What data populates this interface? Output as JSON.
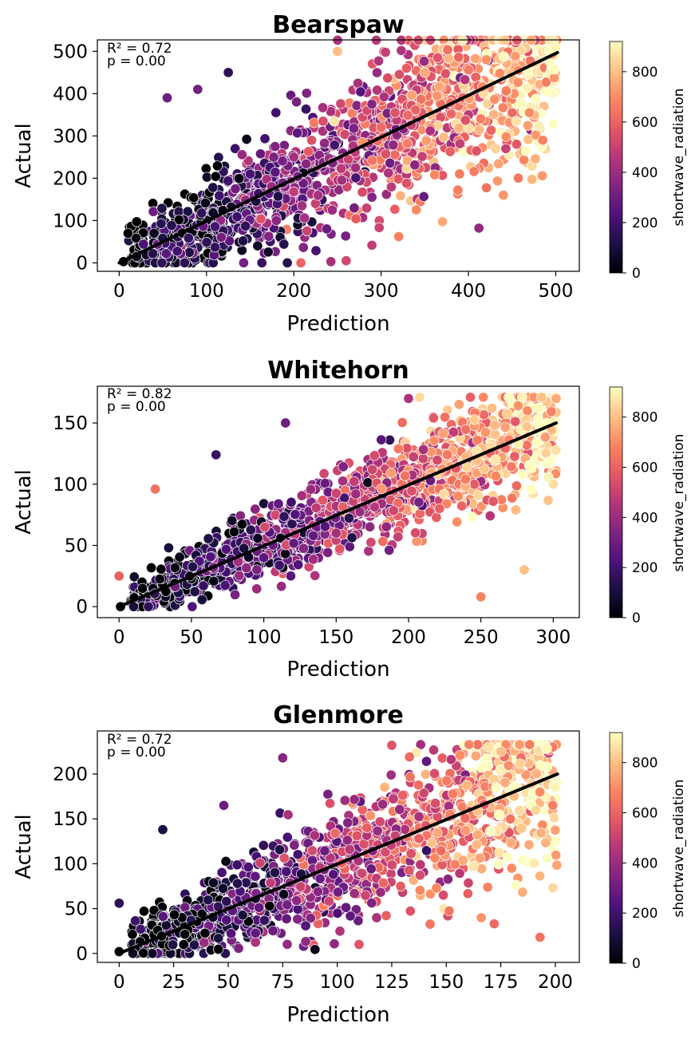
{
  "chart_data": [
    {
      "type": "scatter",
      "title": "Bearspaw",
      "xlabel": "Prediction",
      "ylabel": "Actual",
      "xlim": [
        -25,
        527
      ],
      "ylim": [
        -20,
        527
      ],
      "xticks": [
        0,
        100,
        200,
        300,
        400,
        500
      ],
      "yticks": [
        0,
        100,
        200,
        300,
        400,
        500
      ],
      "annotation": {
        "r2": "R² = 0.72",
        "p": "p = 0.00"
      },
      "regression": {
        "x": [
          0,
          502
        ],
        "y": [
          0,
          497
        ]
      },
      "color_by": "shortwave_radiation",
      "clim": [
        0,
        920
      ],
      "cbar_ticks": [
        0,
        200,
        400,
        600,
        800
      ],
      "cbar_label": "shortwave_radiation",
      "points_sample": [
        {
          "x": 5,
          "y": 3,
          "c": 5
        },
        {
          "x": 20,
          "y": 15,
          "c": 20
        },
        {
          "x": 40,
          "y": 70,
          "c": 50
        },
        {
          "x": 55,
          "y": 390,
          "c": 300
        },
        {
          "x": 90,
          "y": 410,
          "c": 310
        },
        {
          "x": 125,
          "y": 450,
          "c": 150
        },
        {
          "x": 150,
          "y": 210,
          "c": 220
        },
        {
          "x": 200,
          "y": 250,
          "c": 420
        },
        {
          "x": 250,
          "y": 500,
          "c": 800
        },
        {
          "x": 300,
          "y": 320,
          "c": 620
        },
        {
          "x": 350,
          "y": 450,
          "c": 760
        },
        {
          "x": 412,
          "y": 82,
          "c": 380
        },
        {
          "x": 440,
          "y": 160,
          "c": 720
        },
        {
          "x": 455,
          "y": 335,
          "c": 870
        },
        {
          "x": 470,
          "y": 355,
          "c": 700
        },
        {
          "x": 500,
          "y": 510,
          "c": 900
        },
        {
          "x": 260,
          "y": 5,
          "c": 520
        },
        {
          "x": 180,
          "y": 100,
          "c": 360
        }
      ]
    },
    {
      "type": "scatter",
      "title": "Whitehorn",
      "xlabel": "Prediction",
      "ylabel": "Actual",
      "xlim": [
        -15,
        318
      ],
      "ylim": [
        -9,
        180
      ],
      "xticks": [
        0,
        50,
        100,
        150,
        200,
        250,
        300
      ],
      "yticks": [
        0,
        50,
        100,
        150
      ],
      "annotation": {
        "r2": "R² = 0.82",
        "p": "p = 0.00"
      },
      "regression": {
        "x": [
          0,
          302
        ],
        "y": [
          0,
          150
        ]
      },
      "color_by": "shortwave_radiation",
      "clim": [
        0,
        920
      ],
      "cbar_ticks": [
        0,
        200,
        400,
        600,
        800
      ],
      "cbar_label": "shortwave_radiation",
      "points_sample": [
        {
          "x": 1,
          "y": 0,
          "c": 5
        },
        {
          "x": 0,
          "y": 25,
          "c": 600
        },
        {
          "x": 25,
          "y": 96,
          "c": 640
        },
        {
          "x": 67,
          "y": 124,
          "c": 180
        },
        {
          "x": 115,
          "y": 150,
          "c": 300
        },
        {
          "x": 175,
          "y": 112,
          "c": 520
        },
        {
          "x": 200,
          "y": 170,
          "c": 440
        },
        {
          "x": 250,
          "y": 8,
          "c": 680
        },
        {
          "x": 280,
          "y": 30,
          "c": 800
        },
        {
          "x": 300,
          "y": 100,
          "c": 860
        },
        {
          "x": 302,
          "y": 170,
          "c": 760
        },
        {
          "x": 260,
          "y": 120,
          "c": 880
        },
        {
          "x": 150,
          "y": 60,
          "c": 420
        },
        {
          "x": 100,
          "y": 40,
          "c": 260
        }
      ]
    },
    {
      "type": "scatter",
      "title": "Glenmore",
      "xlabel": "Prediction",
      "ylabel": "Actual",
      "xlim": [
        -10,
        211
      ],
      "ylim": [
        -10,
        248
      ],
      "xticks": [
        0,
        25,
        50,
        75,
        100,
        125,
        150,
        175,
        200
      ],
      "yticks": [
        0,
        50,
        100,
        150,
        200
      ],
      "annotation": {
        "r2": "R² = 0.72",
        "p": "p = 0.00"
      },
      "regression": {
        "x": [
          0,
          201
        ],
        "y": [
          0,
          200
        ]
      },
      "color_by": "shortwave_radiation",
      "clim": [
        0,
        920
      ],
      "cbar_ticks": [
        0,
        200,
        400,
        600,
        800
      ],
      "cbar_label": "shortwave_radiation",
      "points_sample": [
        {
          "x": 0,
          "y": 2,
          "c": 5
        },
        {
          "x": 0,
          "y": 56,
          "c": 150
        },
        {
          "x": 20,
          "y": 138,
          "c": 120
        },
        {
          "x": 48,
          "y": 165,
          "c": 300
        },
        {
          "x": 75,
          "y": 218,
          "c": 360
        },
        {
          "x": 125,
          "y": 232,
          "c": 560
        },
        {
          "x": 175,
          "y": 225,
          "c": 800
        },
        {
          "x": 172,
          "y": 33,
          "c": 620
        },
        {
          "x": 193,
          "y": 18,
          "c": 640
        },
        {
          "x": 200,
          "y": 185,
          "c": 900
        },
        {
          "x": 180,
          "y": 95,
          "c": 700
        },
        {
          "x": 110,
          "y": 10,
          "c": 560
        }
      ]
    }
  ]
}
